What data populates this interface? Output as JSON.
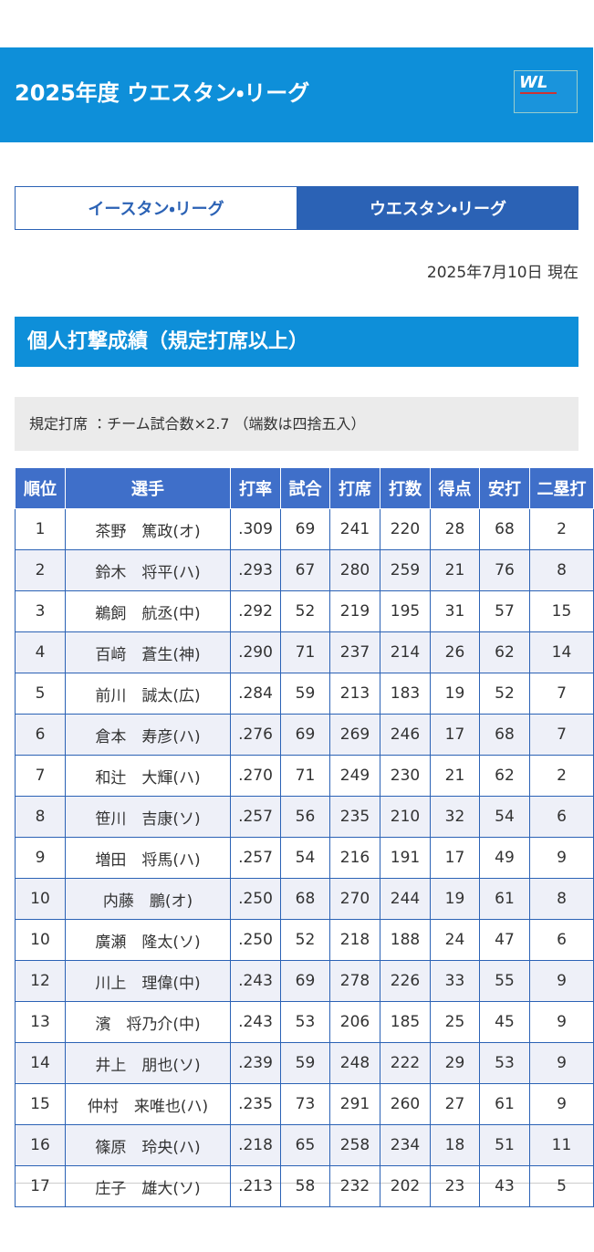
{
  "header": {
    "title": "2025年度 ウエスタン・リーグ",
    "logo": "WL"
  },
  "tabs": [
    "イースタン・リーグ",
    "ウエスタン・リーグ"
  ],
  "date": "2025年7月10日 現在",
  "section_title": "個人打撃成績（規定打席以上）",
  "note": "規定打席 ：チーム試合数×2.7 （端数は四捨五入）",
  "table": {
    "header": [
      "順位",
      "選手",
      "打率",
      "試合",
      "打席",
      "打数",
      "得点",
      "安打",
      "二塁打"
    ],
    "rows": [
      [
        "1",
        "茶野　篤政(オ)",
        ".309",
        "69",
        "241",
        "220",
        "28",
        "68",
        "2"
      ],
      [
        "2",
        "鈴木　将平(ハ)",
        ".293",
        "67",
        "280",
        "259",
        "21",
        "76",
        "8"
      ],
      [
        "3",
        "鵜飼　航丞(中)",
        ".292",
        "52",
        "219",
        "195",
        "31",
        "57",
        "15"
      ],
      [
        "4",
        "百﨑　蒼生(神)",
        ".290",
        "71",
        "237",
        "214",
        "26",
        "62",
        "14"
      ],
      [
        "5",
        "前川　誠太(広)",
        ".284",
        "59",
        "213",
        "183",
        "19",
        "52",
        "7"
      ],
      [
        "6",
        "倉本　寿彦(ハ)",
        ".276",
        "69",
        "269",
        "246",
        "17",
        "68",
        "7"
      ],
      [
        "7",
        "和辻　大輝(ハ)",
        ".270",
        "71",
        "249",
        "230",
        "21",
        "62",
        "2"
      ],
      [
        "8",
        "笹川　吉康(ソ)",
        ".257",
        "56",
        "235",
        "210",
        "32",
        "54",
        "6"
      ],
      [
        "9",
        "増田　将馬(ハ)",
        ".257",
        "54",
        "216",
        "191",
        "17",
        "49",
        "9"
      ],
      [
        "10",
        "内藤　鵬(オ)",
        ".250",
        "68",
        "270",
        "244",
        "19",
        "61",
        "8"
      ],
      [
        "10",
        "廣瀬　隆太(ソ)",
        ".250",
        "52",
        "218",
        "188",
        "24",
        "47",
        "6"
      ],
      [
        "12",
        "川上　理偉(中)",
        ".243",
        "69",
        "278",
        "226",
        "33",
        "55",
        "9"
      ],
      [
        "13",
        "濱　将乃介(中)",
        ".243",
        "53",
        "206",
        "185",
        "25",
        "45",
        "9"
      ],
      [
        "14",
        "井上　朋也(ソ)",
        ".239",
        "59",
        "248",
        "222",
        "29",
        "53",
        "9"
      ],
      [
        "15",
        "仲村　来唯也(ハ)",
        ".235",
        "73",
        "291",
        "260",
        "27",
        "61",
        "9"
      ],
      [
        "16",
        "篠原　玲央(ハ)",
        ".218",
        "65",
        "258",
        "234",
        "18",
        "51",
        "11"
      ],
      [
        "17",
        "庄子　雄大(ソ)",
        ".213",
        "58",
        "232",
        "202",
        "23",
        "43",
        "5"
      ]
    ]
  }
}
